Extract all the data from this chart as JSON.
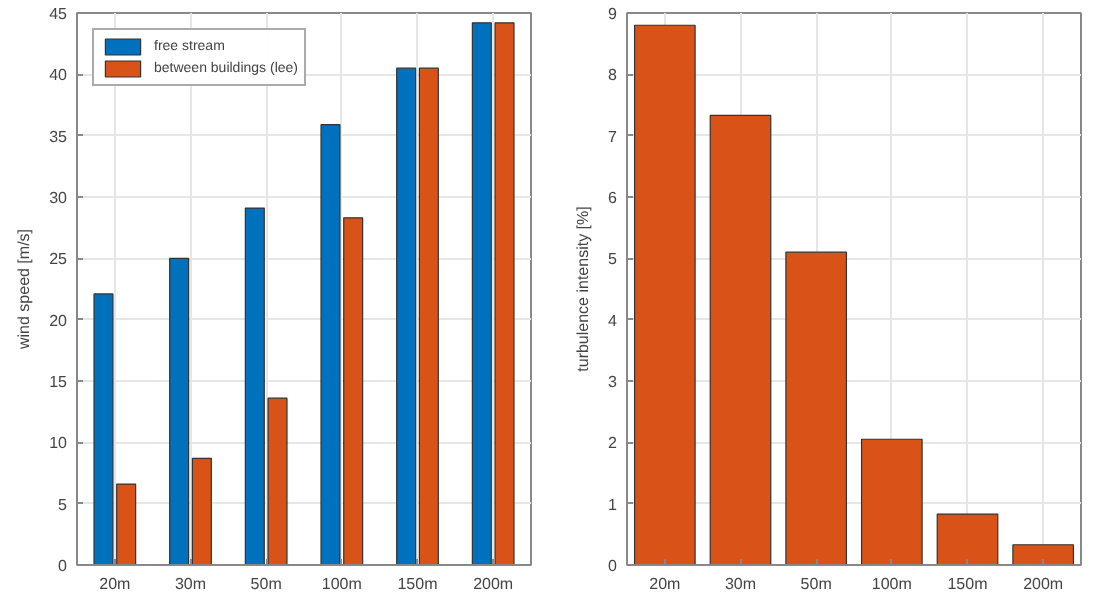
{
  "chart_data": [
    {
      "type": "bar",
      "ylabel": "wind speed [m/s]",
      "categories": [
        "20m",
        "30m",
        "50m",
        "100m",
        "150m",
        "200m"
      ],
      "ylim": [
        0,
        45
      ],
      "yticks": [
        0,
        5,
        10,
        15,
        20,
        25,
        30,
        35,
        40,
        45
      ],
      "grid": true,
      "legend": "top left",
      "series": [
        {
          "name": "free stream",
          "color": "#0072bd",
          "values": [
            22.1,
            25.0,
            29.1,
            35.9,
            40.5,
            44.2
          ]
        },
        {
          "name": "between buildings (lee)",
          "color": "#d95319",
          "values": [
            6.6,
            8.7,
            13.6,
            28.3,
            40.5,
            44.2
          ]
        }
      ]
    },
    {
      "type": "bar",
      "ylabel": "turbulence intensity [%]",
      "categories": [
        "20m",
        "30m",
        "50m",
        "100m",
        "150m",
        "200m"
      ],
      "ylim": [
        0,
        9
      ],
      "yticks": [
        0,
        1,
        2,
        3,
        4,
        5,
        6,
        7,
        8,
        9
      ],
      "grid": true,
      "series": [
        {
          "color": "#d95319",
          "values": [
            8.8,
            7.33,
            5.1,
            2.05,
            0.83,
            0.33
          ]
        }
      ]
    }
  ]
}
